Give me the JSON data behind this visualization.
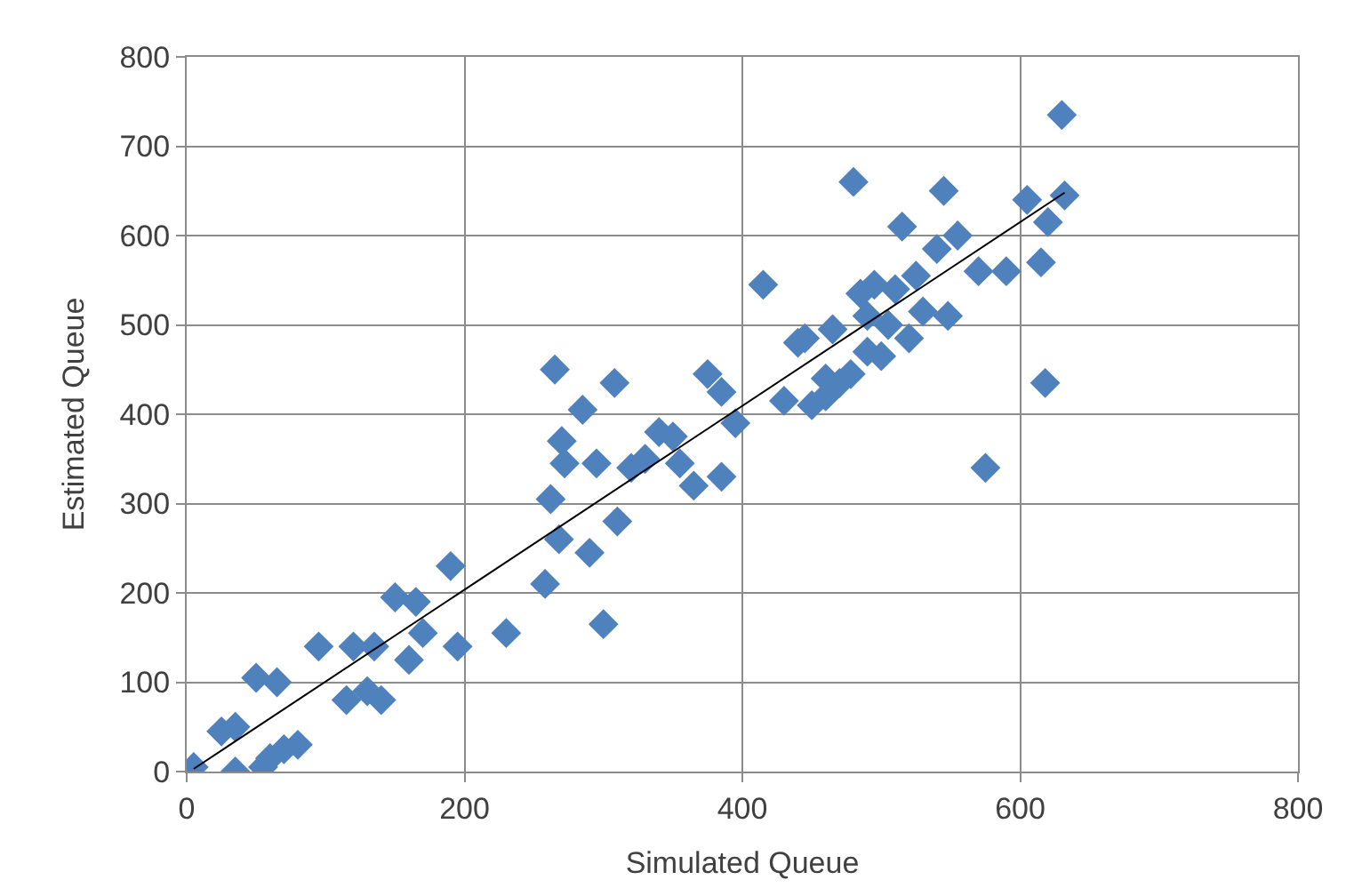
{
  "chart_data": {
    "type": "scatter",
    "xlabel": "Simulated Queue",
    "ylabel": "Estimated Queue",
    "xlim": [
      0,
      800
    ],
    "xticks": [
      0,
      200,
      400,
      600,
      800
    ],
    "ylim": [
      0,
      800
    ],
    "yticks": [
      0,
      100,
      200,
      300,
      400,
      500,
      600,
      700,
      800
    ],
    "grid": true,
    "marker": "diamond",
    "legend": false,
    "series": [
      {
        "color": "#4f81bd",
        "x": [
          5,
          25,
          35,
          35,
          50,
          55,
          60,
          65,
          70,
          80,
          95,
          115,
          120,
          130,
          135,
          140,
          150,
          160,
          165,
          170,
          190,
          195,
          230,
          258,
          262,
          265,
          268,
          270,
          272,
          285,
          290,
          295,
          300,
          308,
          310,
          320,
          330,
          340,
          350,
          355,
          365,
          375,
          385,
          385,
          395,
          415,
          430,
          440,
          445,
          450,
          460,
          465,
          470,
          478,
          480,
          485,
          490,
          495,
          500,
          505,
          510,
          515,
          520,
          525,
          530,
          540,
          545,
          548,
          555,
          570,
          575,
          590,
          605,
          615,
          618,
          620,
          630,
          632,
          490,
          460
        ],
        "values": [
          5,
          45,
          50,
          0,
          105,
          5,
          15,
          100,
          25,
          30,
          140,
          80,
          140,
          90,
          140,
          80,
          195,
          125,
          190,
          155,
          230,
          140,
          155,
          210,
          305,
          450,
          260,
          370,
          345,
          405,
          245,
          345,
          165,
          435,
          280,
          340,
          350,
          380,
          375,
          345,
          320,
          445,
          330,
          425,
          390,
          545,
          415,
          480,
          485,
          410,
          420,
          495,
          435,
          445,
          660,
          535,
          470,
          545,
          465,
          500,
          540,
          610,
          485,
          555,
          515,
          585,
          650,
          510,
          600,
          560,
          340,
          560,
          640,
          570,
          435,
          615,
          735,
          645,
          510,
          440
        ]
      },
      {
        "type": "line",
        "color": "#000000",
        "marker": "none",
        "x": [
          5,
          632
        ],
        "values": [
          3,
          648
        ]
      }
    ]
  }
}
